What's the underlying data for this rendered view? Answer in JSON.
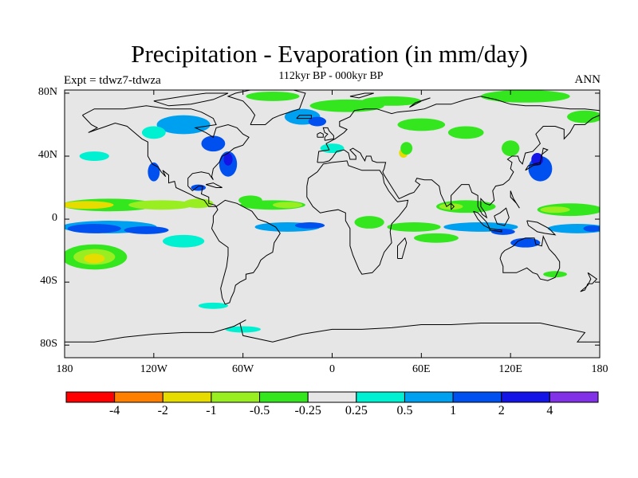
{
  "header": {
    "title": "Precipitation - Evaporation (in mm/day)",
    "subtitle": "112kyr BP - 000kyr BP",
    "left_label": "Expt = tdwz7-tdwza",
    "right_label": "ANN"
  },
  "map": {
    "projection": "cylindrical equidistant",
    "lon_range": [
      -180,
      180
    ],
    "lat_range": [
      -90,
      90
    ],
    "lat_ticks": [
      {
        "lat": 80,
        "label": "80N"
      },
      {
        "lat": 40,
        "label": "40N"
      },
      {
        "lat": 0,
        "label": "0"
      },
      {
        "lat": -40,
        "label": "40S"
      },
      {
        "lat": -80,
        "label": "80S"
      }
    ],
    "lon_ticks": [
      {
        "lon": -180,
        "label": "180"
      },
      {
        "lon": -120,
        "label": "120W"
      },
      {
        "lon": -60,
        "label": "60W"
      },
      {
        "lon": 0,
        "label": "0"
      },
      {
        "lon": 60,
        "label": "60E"
      },
      {
        "lon": 120,
        "label": "120E"
      },
      {
        "lon": 180,
        "label": "180"
      }
    ],
    "background_color": "#e6e6e6",
    "coastline_color": "#000000"
  },
  "colorbar": {
    "colors": [
      "#ff0000",
      "#ff8000",
      "#e6dc00",
      "#99ee22",
      "#33e61e",
      "#e6e6e6",
      "#00f0d2",
      "#00a0f0",
      "#0050f0",
      "#1414e6",
      "#8232e6"
    ],
    "labels": [
      "-4",
      "-2",
      "-1",
      "-0.5",
      "-0.25",
      "0.25",
      "0.5",
      "1",
      "2",
      "4"
    ]
  },
  "chart_data": {
    "type": "heatmap",
    "title": "Precipitation - Evaporation (in mm/day)",
    "subtitle": "112kyr BP - 000kyr BP",
    "levels": [
      -4,
      -2,
      -1,
      -0.5,
      -0.25,
      0.25,
      0.5,
      1,
      2,
      4
    ],
    "units": "mm/day",
    "features": [
      {
        "lon": -160,
        "lat": 9,
        "class": "wet-to-dry",
        "value": -1.5
      },
      {
        "lon": -130,
        "lat": 8,
        "class": "dry",
        "value": -0.5
      },
      {
        "lon": -100,
        "lat": 8,
        "class": "dry",
        "value": -1
      },
      {
        "lon": -150,
        "lat": -5,
        "class": "wet",
        "value": 1.5
      },
      {
        "lon": -120,
        "lat": -6,
        "class": "wet",
        "value": 0.7
      },
      {
        "lon": -160,
        "lat": -25,
        "class": "dry",
        "value": -1.5
      },
      {
        "lon": -40,
        "lat": 9,
        "class": "dry",
        "value": -1
      },
      {
        "lon": -30,
        "lat": -5,
        "class": "wet",
        "value": 1
      },
      {
        "lon": 90,
        "lat": 8,
        "class": "dry",
        "value": -0.8
      },
      {
        "lon": 100,
        "lat": -5,
        "class": "wet",
        "value": 0.8
      },
      {
        "lon": 160,
        "lat": 5,
        "class": "dry",
        "value": -1
      },
      {
        "lon": 140,
        "lat": 30,
        "class": "wet",
        "value": 1.5
      },
      {
        "lon": -70,
        "lat": 35,
        "class": "wet",
        "value": 1.5
      },
      {
        "lon": -20,
        "lat": 62,
        "class": "wet",
        "value": 1
      },
      {
        "lon": -100,
        "lat": 60,
        "class": "wet",
        "value": 0.7
      },
      {
        "lon": 50,
        "lat": 42,
        "class": "dry",
        "value": -1
      }
    ]
  }
}
